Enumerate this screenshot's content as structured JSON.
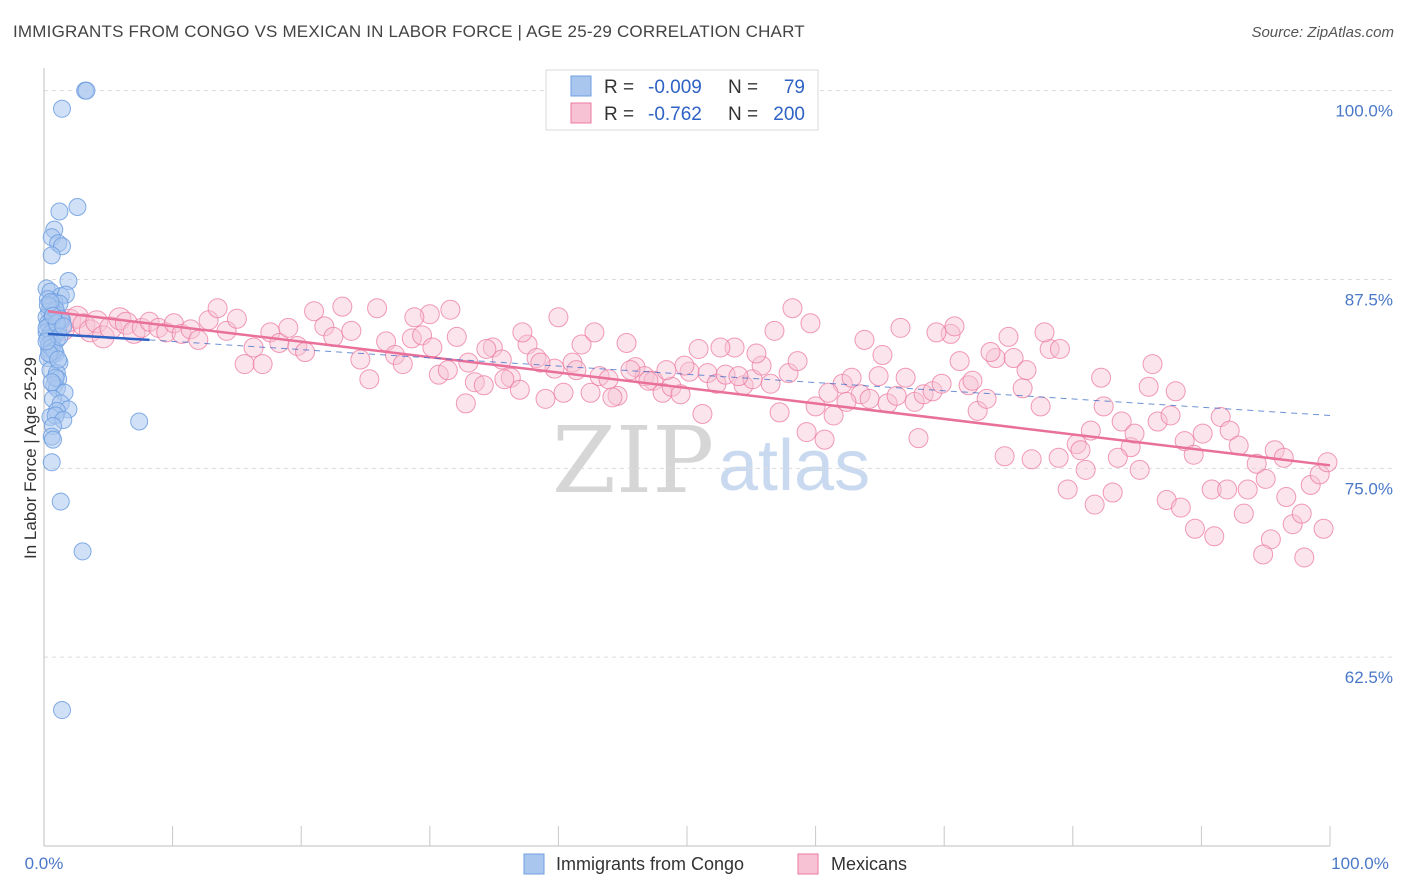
{
  "title": "IMMIGRANTS FROM CONGO VS MEXICAN IN LABOR FORCE | AGE 25-29 CORRELATION CHART",
  "source": "Source: ZipAtlas.com",
  "watermark": {
    "part1": "ZIP",
    "part2": "atlas"
  },
  "colors": {
    "congo": "#6f9fe0",
    "congo_fill": "#a9c6ef",
    "mexican": "#ec7aa0",
    "mexican_fill": "#f7c3d4",
    "congo_line": "#2e62c4",
    "mexican_line": "#e8709a",
    "tick_text": "#4a78c8"
  },
  "legend": {
    "rows": [
      {
        "r_label": "R =",
        "r_value": "-0.009",
        "n_label": "N =",
        "n_value": "79"
      },
      {
        "r_label": "R =",
        "r_value": "-0.762",
        "n_label": "N =",
        "n_value": "200"
      }
    ]
  },
  "bottom_legend": {
    "congo": "Immigrants from Congo",
    "mexican": "Mexicans"
  },
  "chart_data": {
    "type": "scatter",
    "xlabel": "",
    "ylabel": "In Labor Force | Age 25-29",
    "xlim": [
      0,
      100
    ],
    "ylim": [
      50,
      101.5
    ],
    "x_tick_labels": [
      "0.0%",
      "100.0%"
    ],
    "y_ticks": [
      62.5,
      75.0,
      87.5,
      100.0
    ],
    "y_tick_labels": [
      "62.5%",
      "75.0%",
      "87.5%",
      "100.0%"
    ],
    "grid": true,
    "series": [
      {
        "name": "Immigrants from Congo",
        "R": -0.009,
        "N": 79,
        "trend_solid": [
          [
            0.3,
            83.9
          ],
          [
            8.2,
            83.5
          ]
        ],
        "trend_dashed": [
          [
            8.2,
            83.5
          ],
          [
            100,
            78.5
          ]
        ],
        "points": [
          [
            3.2,
            100
          ],
          [
            3.3,
            100
          ],
          [
            1.4,
            98.8
          ],
          [
            2.6,
            92.3
          ],
          [
            1.2,
            92.0
          ],
          [
            0.8,
            90.8
          ],
          [
            0.6,
            90.3
          ],
          [
            1.1,
            89.9
          ],
          [
            1.4,
            89.7
          ],
          [
            0.6,
            89.1
          ],
          [
            1.9,
            87.4
          ],
          [
            0.2,
            86.9
          ],
          [
            0.5,
            86.7
          ],
          [
            1.3,
            86.4
          ],
          [
            1.7,
            86.5
          ],
          [
            0.3,
            86.2
          ],
          [
            0.8,
            86.0
          ],
          [
            1.2,
            85.9
          ],
          [
            0.5,
            85.7
          ],
          [
            0.4,
            85.4
          ],
          [
            0.7,
            85.3
          ],
          [
            1.0,
            85.2
          ],
          [
            0.2,
            85.0
          ],
          [
            0.6,
            84.9
          ],
          [
            1.4,
            84.8
          ],
          [
            0.3,
            84.6
          ],
          [
            0.9,
            84.5
          ],
          [
            0.4,
            84.4
          ],
          [
            0.7,
            84.2
          ],
          [
            1.1,
            84.1
          ],
          [
            0.2,
            84.0
          ],
          [
            0.5,
            83.9
          ],
          [
            0.8,
            83.8
          ],
          [
            0.3,
            83.6
          ],
          [
            1.0,
            83.5
          ],
          [
            0.6,
            83.3
          ],
          [
            0.4,
            82.9
          ],
          [
            0.9,
            82.6
          ],
          [
            0.6,
            82.5
          ],
          [
            0.3,
            82.3
          ],
          [
            1.2,
            82.0
          ],
          [
            0.5,
            81.5
          ],
          [
            1.0,
            81.3
          ],
          [
            1.1,
            80.9
          ],
          [
            0.8,
            80.5
          ],
          [
            1.0,
            80.3
          ],
          [
            1.6,
            80.0
          ],
          [
            0.7,
            79.6
          ],
          [
            1.3,
            79.3
          ],
          [
            1.9,
            78.9
          ],
          [
            1.0,
            78.8
          ],
          [
            0.5,
            78.4
          ],
          [
            0.9,
            78.5
          ],
          [
            1.5,
            78.2
          ],
          [
            7.4,
            78.1
          ],
          [
            0.7,
            77.8
          ],
          [
            0.6,
            77.1
          ],
          [
            0.7,
            76.9
          ],
          [
            0.6,
            75.4
          ],
          [
            1.3,
            72.8
          ],
          [
            3.0,
            69.5
          ],
          [
            1.4,
            59.0
          ],
          [
            0.4,
            83.2
          ],
          [
            0.2,
            84.3
          ],
          [
            0.9,
            85.5
          ],
          [
            1.3,
            84.9
          ],
          [
            0.6,
            83.0
          ],
          [
            0.8,
            82.8
          ],
          [
            1.0,
            84.6
          ],
          [
            0.3,
            85.8
          ],
          [
            0.5,
            86.0
          ],
          [
            1.2,
            83.7
          ],
          [
            0.4,
            82.6
          ],
          [
            0.7,
            85.1
          ],
          [
            1.5,
            84.4
          ],
          [
            0.2,
            83.4
          ],
          [
            0.9,
            81.0
          ],
          [
            1.1,
            82.2
          ],
          [
            0.6,
            80.7
          ]
        ]
      },
      {
        "name": "Mexicans",
        "R": -0.762,
        "N": 200,
        "trend": [
          [
            0.3,
            85.4
          ],
          [
            100,
            75.2
          ]
        ],
        "points": [
          [
            0.8,
            84.6
          ],
          [
            1.5,
            84.2
          ],
          [
            2.0,
            84.8
          ],
          [
            2.6,
            85.0
          ],
          [
            3.1,
            84.5
          ],
          [
            3.6,
            84.1
          ],
          [
            4.1,
            84.7
          ],
          [
            4.6,
            83.7
          ],
          [
            5.2,
            84.3
          ],
          [
            5.9,
            84.9
          ],
          [
            6.4,
            84.6
          ],
          [
            7.0,
            84.0
          ],
          [
            7.6,
            84.3
          ],
          [
            8.2,
            84.7
          ],
          [
            8.9,
            84.3
          ],
          [
            9.5,
            84.0
          ],
          [
            10.1,
            84.6
          ],
          [
            10.7,
            83.9
          ],
          [
            11.4,
            84.2
          ],
          [
            12.0,
            83.5
          ],
          [
            12.8,
            84.8
          ],
          [
            13.5,
            85.6
          ],
          [
            14.2,
            84.1
          ],
          [
            15.0,
            84.9
          ],
          [
            15.6,
            81.9
          ],
          [
            16.3,
            83.0
          ],
          [
            17.0,
            81.9
          ],
          [
            17.6,
            84.0
          ],
          [
            18.3,
            83.3
          ],
          [
            19.0,
            84.3
          ],
          [
            19.7,
            83.1
          ],
          [
            20.3,
            82.7
          ],
          [
            21.0,
            85.4
          ],
          [
            21.8,
            84.4
          ],
          [
            22.5,
            83.7
          ],
          [
            23.2,
            85.7
          ],
          [
            23.9,
            84.1
          ],
          [
            24.6,
            82.2
          ],
          [
            25.3,
            80.9
          ],
          [
            25.9,
            85.6
          ],
          [
            26.6,
            83.4
          ],
          [
            27.3,
            82.5
          ],
          [
            27.9,
            81.9
          ],
          [
            28.6,
            83.6
          ],
          [
            29.4,
            83.8
          ],
          [
            30.0,
            85.2
          ],
          [
            30.7,
            81.2
          ],
          [
            31.4,
            81.5
          ],
          [
            32.1,
            83.7
          ],
          [
            32.8,
            79.3
          ],
          [
            33.5,
            80.7
          ],
          [
            34.2,
            80.5
          ],
          [
            34.9,
            83.0
          ],
          [
            35.6,
            82.2
          ],
          [
            36.3,
            81.0
          ],
          [
            37.0,
            80.2
          ],
          [
            37.6,
            83.2
          ],
          [
            38.3,
            82.3
          ],
          [
            39.0,
            79.6
          ],
          [
            39.7,
            81.6
          ],
          [
            40.4,
            80.0
          ],
          [
            41.1,
            82.0
          ],
          [
            41.8,
            83.2
          ],
          [
            42.5,
            80.0
          ],
          [
            43.2,
            81.1
          ],
          [
            43.9,
            80.9
          ],
          [
            44.6,
            79.8
          ],
          [
            45.3,
            83.3
          ],
          [
            46.0,
            81.7
          ],
          [
            46.7,
            81.1
          ],
          [
            47.4,
            80.8
          ],
          [
            48.1,
            80.0
          ],
          [
            48.8,
            80.4
          ],
          [
            49.5,
            79.9
          ],
          [
            50.2,
            81.4
          ],
          [
            50.9,
            82.9
          ],
          [
            51.6,
            81.3
          ],
          [
            52.3,
            80.6
          ],
          [
            53.0,
            81.2
          ],
          [
            53.7,
            83.0
          ],
          [
            54.4,
            80.5
          ],
          [
            55.1,
            80.9
          ],
          [
            55.8,
            81.8
          ],
          [
            56.5,
            80.6
          ],
          [
            57.2,
            78.7
          ],
          [
            57.9,
            81.3
          ],
          [
            58.6,
            82.1
          ],
          [
            59.3,
            77.4
          ],
          [
            60.0,
            79.1
          ],
          [
            60.7,
            76.9
          ],
          [
            61.4,
            78.5
          ],
          [
            62.1,
            80.6
          ],
          [
            62.8,
            81.0
          ],
          [
            63.5,
            79.9
          ],
          [
            64.2,
            79.6
          ],
          [
            64.9,
            81.1
          ],
          [
            65.6,
            79.3
          ],
          [
            66.3,
            79.8
          ],
          [
            67.0,
            81.0
          ],
          [
            67.7,
            79.4
          ],
          [
            68.4,
            79.9
          ],
          [
            69.1,
            80.1
          ],
          [
            69.8,
            80.6
          ],
          [
            70.5,
            83.9
          ],
          [
            71.2,
            82.1
          ],
          [
            71.9,
            80.5
          ],
          [
            72.6,
            78.8
          ],
          [
            73.3,
            79.6
          ],
          [
            74.0,
            82.3
          ],
          [
            74.7,
            75.8
          ],
          [
            75.4,
            82.3
          ],
          [
            76.1,
            80.3
          ],
          [
            76.8,
            75.6
          ],
          [
            77.5,
            79.1
          ],
          [
            78.2,
            82.9
          ],
          [
            78.9,
            75.7
          ],
          [
            79.6,
            73.6
          ],
          [
            80.3,
            76.6
          ],
          [
            81.0,
            74.9
          ],
          [
            81.7,
            72.6
          ],
          [
            82.4,
            79.1
          ],
          [
            83.1,
            73.4
          ],
          [
            83.8,
            78.1
          ],
          [
            84.5,
            76.4
          ],
          [
            85.2,
            74.9
          ],
          [
            85.9,
            80.4
          ],
          [
            86.6,
            78.1
          ],
          [
            87.3,
            72.9
          ],
          [
            88.0,
            80.1
          ],
          [
            88.7,
            76.8
          ],
          [
            89.4,
            75.9
          ],
          [
            90.1,
            77.3
          ],
          [
            90.8,
            73.6
          ],
          [
            91.5,
            78.4
          ],
          [
            92.2,
            77.5
          ],
          [
            92.9,
            76.5
          ],
          [
            93.6,
            73.6
          ],
          [
            94.3,
            75.3
          ],
          [
            95.0,
            74.3
          ],
          [
            95.7,
            76.2
          ],
          [
            96.4,
            75.7
          ],
          [
            97.1,
            71.3
          ],
          [
            97.8,
            72.0
          ],
          [
            98.5,
            73.9
          ],
          [
            99.2,
            74.6
          ],
          [
            99.8,
            75.4
          ],
          [
            99.5,
            71.0
          ],
          [
            98.0,
            69.1
          ],
          [
            96.6,
            73.1
          ],
          [
            95.4,
            70.3
          ],
          [
            94.8,
            69.3
          ],
          [
            93.3,
            72.0
          ],
          [
            92.0,
            73.6
          ],
          [
            91.0,
            70.5
          ],
          [
            89.5,
            71.0
          ],
          [
            88.4,
            72.4
          ],
          [
            87.6,
            78.5
          ],
          [
            86.2,
            81.9
          ],
          [
            84.8,
            77.3
          ],
          [
            83.5,
            75.7
          ],
          [
            82.2,
            81.0
          ],
          [
            81.4,
            77.5
          ],
          [
            80.6,
            76.2
          ],
          [
            79.0,
            82.9
          ],
          [
            77.8,
            84.0
          ],
          [
            76.4,
            81.5
          ],
          [
            75.0,
            83.7
          ],
          [
            73.6,
            82.7
          ],
          [
            72.2,
            80.8
          ],
          [
            70.8,
            84.4
          ],
          [
            69.4,
            84.0
          ],
          [
            68.0,
            77.0
          ],
          [
            66.6,
            84.3
          ],
          [
            65.2,
            82.5
          ],
          [
            63.8,
            83.5
          ],
          [
            62.4,
            79.4
          ],
          [
            61.0,
            80.0
          ],
          [
            59.6,
            84.6
          ],
          [
            58.2,
            85.6
          ],
          [
            56.8,
            84.1
          ],
          [
            55.4,
            82.6
          ],
          [
            54.0,
            81.1
          ],
          [
            52.6,
            83.0
          ],
          [
            51.2,
            78.6
          ],
          [
            49.8,
            81.8
          ],
          [
            48.4,
            81.5
          ],
          [
            47.0,
            80.8
          ],
          [
            45.6,
            81.5
          ],
          [
            44.2,
            79.7
          ],
          [
            42.8,
            84.0
          ],
          [
            41.4,
            81.5
          ],
          [
            40.0,
            85.0
          ],
          [
            38.6,
            82.0
          ],
          [
            37.2,
            84.0
          ],
          [
            35.8,
            80.9
          ],
          [
            34.4,
            82.9
          ],
          [
            33.0,
            82.0
          ],
          [
            31.6,
            85.5
          ],
          [
            30.2,
            83.0
          ],
          [
            28.8,
            85.0
          ]
        ]
      }
    ]
  }
}
